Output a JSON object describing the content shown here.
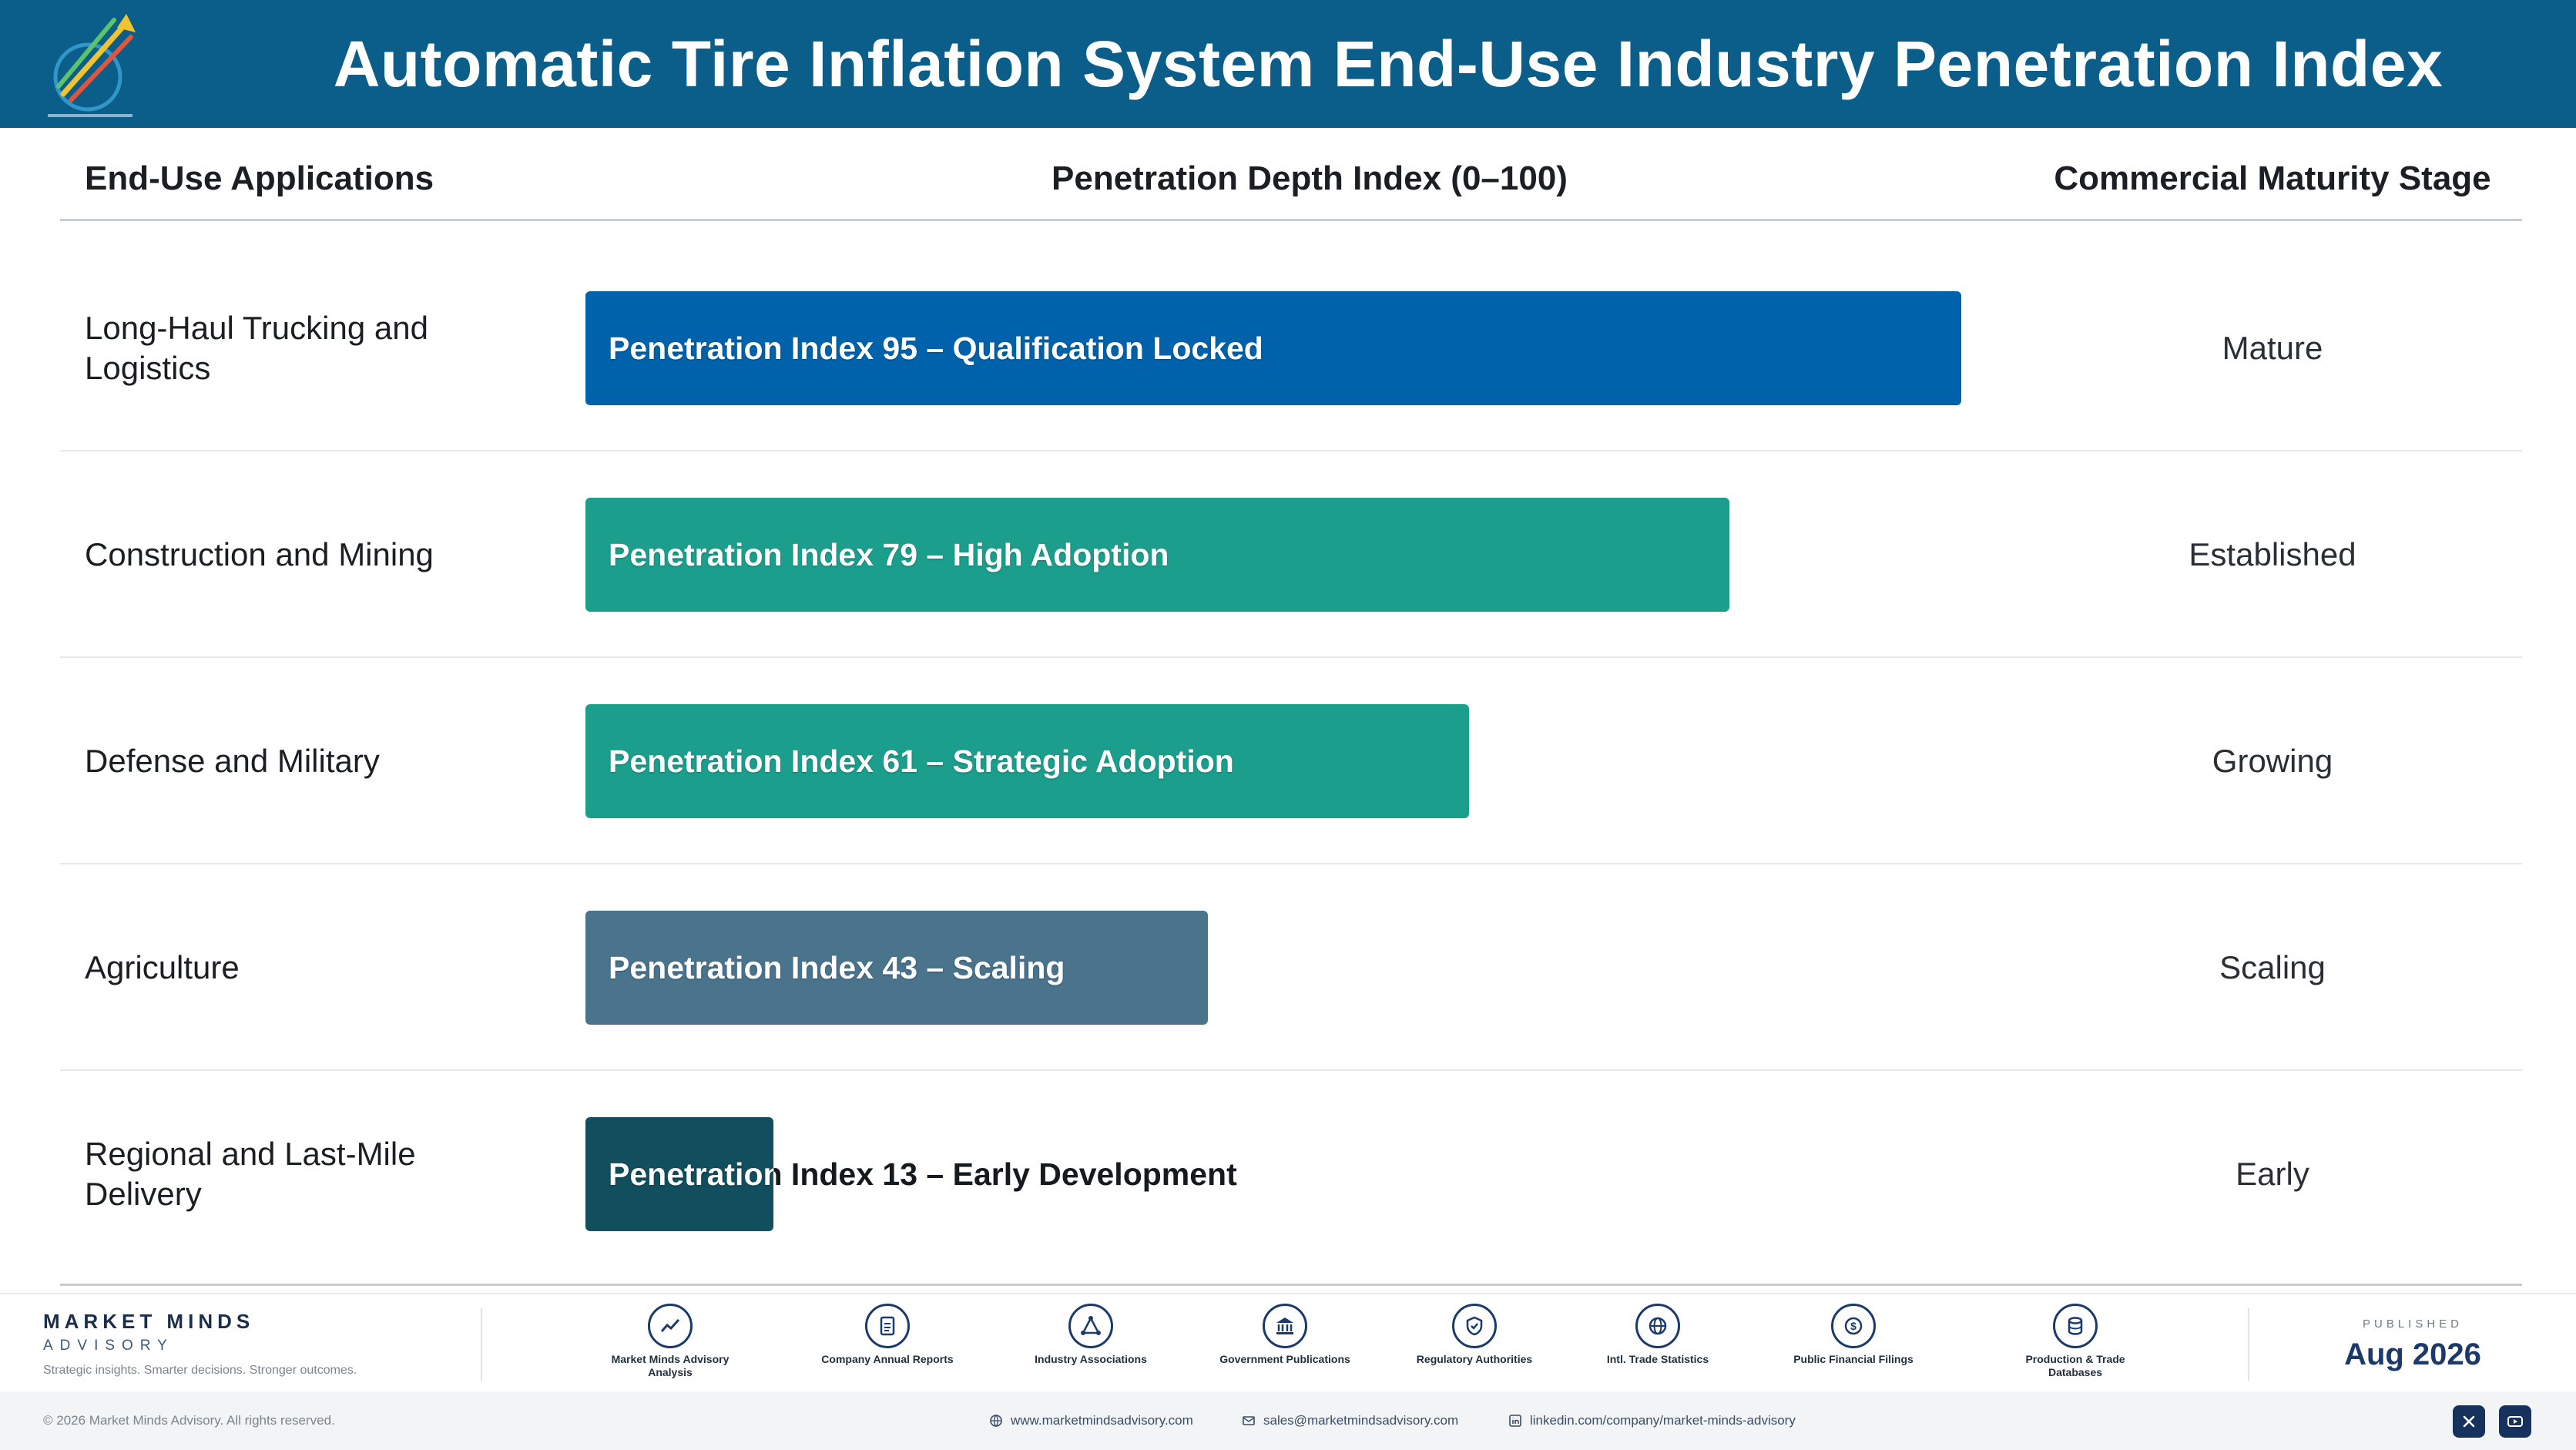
{
  "header": {
    "title": "Automatic Tire Inflation System End-Use Industry Penetration Index",
    "logo_icon": "market-minds-logo-icon"
  },
  "columns": {
    "application": "End-Use Applications",
    "index": "Penetration Depth Index (0–100)",
    "stage": "Commercial Maturity Stage"
  },
  "chart_data": {
    "type": "bar",
    "orientation": "horizontal",
    "title": "Automatic Tire Inflation System End-Use Industry Penetration Index",
    "xlabel": "Penetration Depth Index (0–100)",
    "xlim": [
      0,
      100
    ],
    "categories": [
      "Long-Haul Trucking and Logistics",
      "Construction and Mining",
      "Defense and Military",
      "Agriculture",
      "Regional and Last-Mile Delivery"
    ],
    "values": [
      95,
      79,
      61,
      43,
      13
    ],
    "bar_labels": [
      "Penetration Index 95 – Qualification Locked",
      "Penetration Index 79 – High Adoption",
      "Penetration Index 61 – Strategic Adoption",
      "Penetration Index 43 – Scaling",
      "Penetration Index 13 – Early Development"
    ],
    "stages": [
      "Mature",
      "Established",
      "Growing",
      "Scaling",
      "Early"
    ],
    "colors": [
      "#0062aa",
      "#1c9e8c",
      "#1c9e8c",
      "#4a738c",
      "#114e5e"
    ]
  },
  "footer": {
    "brand_name": "MARKET MINDS",
    "brand_sub": "ADVISORY",
    "tagline": "Strategic insights. Smarter decisions. Stronger outcomes.",
    "sources": [
      {
        "label": "Market Minds Advisory Analysis",
        "icon": "trend-chart-icon"
      },
      {
        "label": "Company Annual Reports",
        "icon": "document-icon"
      },
      {
        "label": "Industry Associations",
        "icon": "network-icon"
      },
      {
        "label": "Government Publications",
        "icon": "government-building-icon"
      },
      {
        "label": "Regulatory Authorities",
        "icon": "shield-check-icon"
      },
      {
        "label": "Intl. Trade Statistics",
        "icon": "globe-icon"
      },
      {
        "label": "Public Financial Filings",
        "icon": "dollar-coin-icon"
      },
      {
        "label": "Production & Trade Databases",
        "icon": "database-icon"
      }
    ],
    "published_label": "PUBLISHED",
    "published_date": "Aug 2026",
    "copyright": "© 2026 Market Minds Advisory. All rights reserved.",
    "website": "www.marketmindsadvisory.com",
    "email": "sales@marketmindsadvisory.com",
    "linkedin": "linkedin.com/company/market-minds-advisory"
  }
}
